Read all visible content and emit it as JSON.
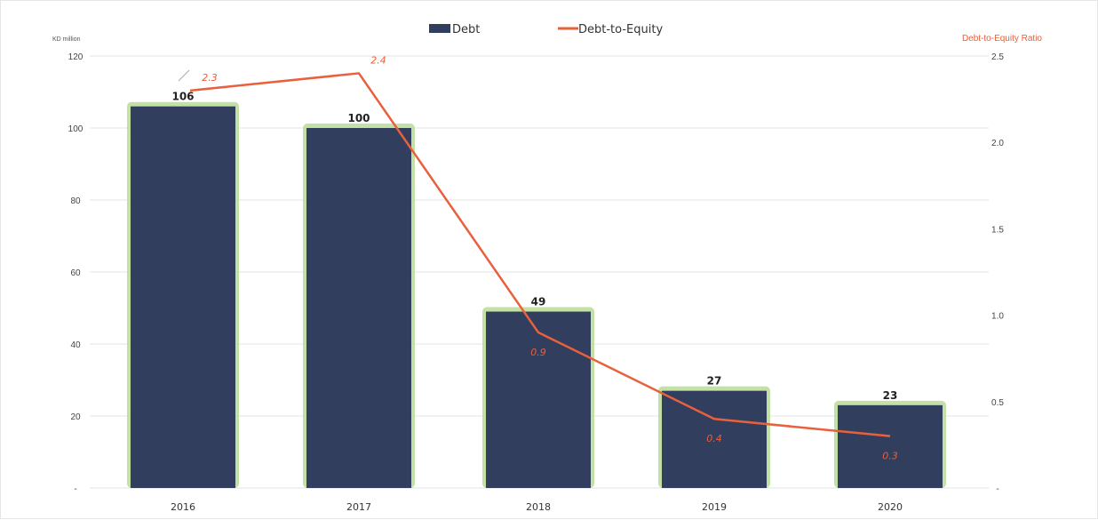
{
  "chart_data": {
    "type": "bar",
    "categories": [
      "2016",
      "2017",
      "2018",
      "2019",
      "2020"
    ],
    "series": [
      {
        "name": "Debt",
        "type": "bar",
        "axis": "left",
        "values": [
          106,
          100,
          49,
          27,
          23
        ],
        "color": "#323e5e"
      },
      {
        "name": "Debt-to-Equity",
        "type": "line",
        "axis": "right",
        "values": [
          2.3,
          2.4,
          0.9,
          0.4,
          0.3
        ],
        "color": "#e8603c"
      }
    ],
    "y_left": {
      "label": "KD million",
      "ylim": [
        0,
        120
      ],
      "ticks": [
        "-",
        "20",
        "40",
        "60",
        "80",
        "100",
        "120"
      ]
    },
    "y_right": {
      "label": "Debt-to-Equity Ratio",
      "ylim": [
        0,
        2.5
      ],
      "ticks": [
        "-",
        "0.5",
        "1.0",
        "1.5",
        "2.0",
        "2.5"
      ]
    },
    "bar_labels": [
      "106",
      "100",
      "49",
      "27",
      "23"
    ],
    "line_labels": [
      "2.3",
      "2.4",
      "0.9",
      "0.4",
      "0.3"
    ],
    "legend": {
      "position": "top-center",
      "items": [
        "Debt",
        "Debt-to-Equity"
      ]
    },
    "grid": true,
    "colors": {
      "bar": "#323e5e",
      "bar_glow": "#b8dc94",
      "line": "#e8603c",
      "grid": "#e3e3e3"
    }
  }
}
